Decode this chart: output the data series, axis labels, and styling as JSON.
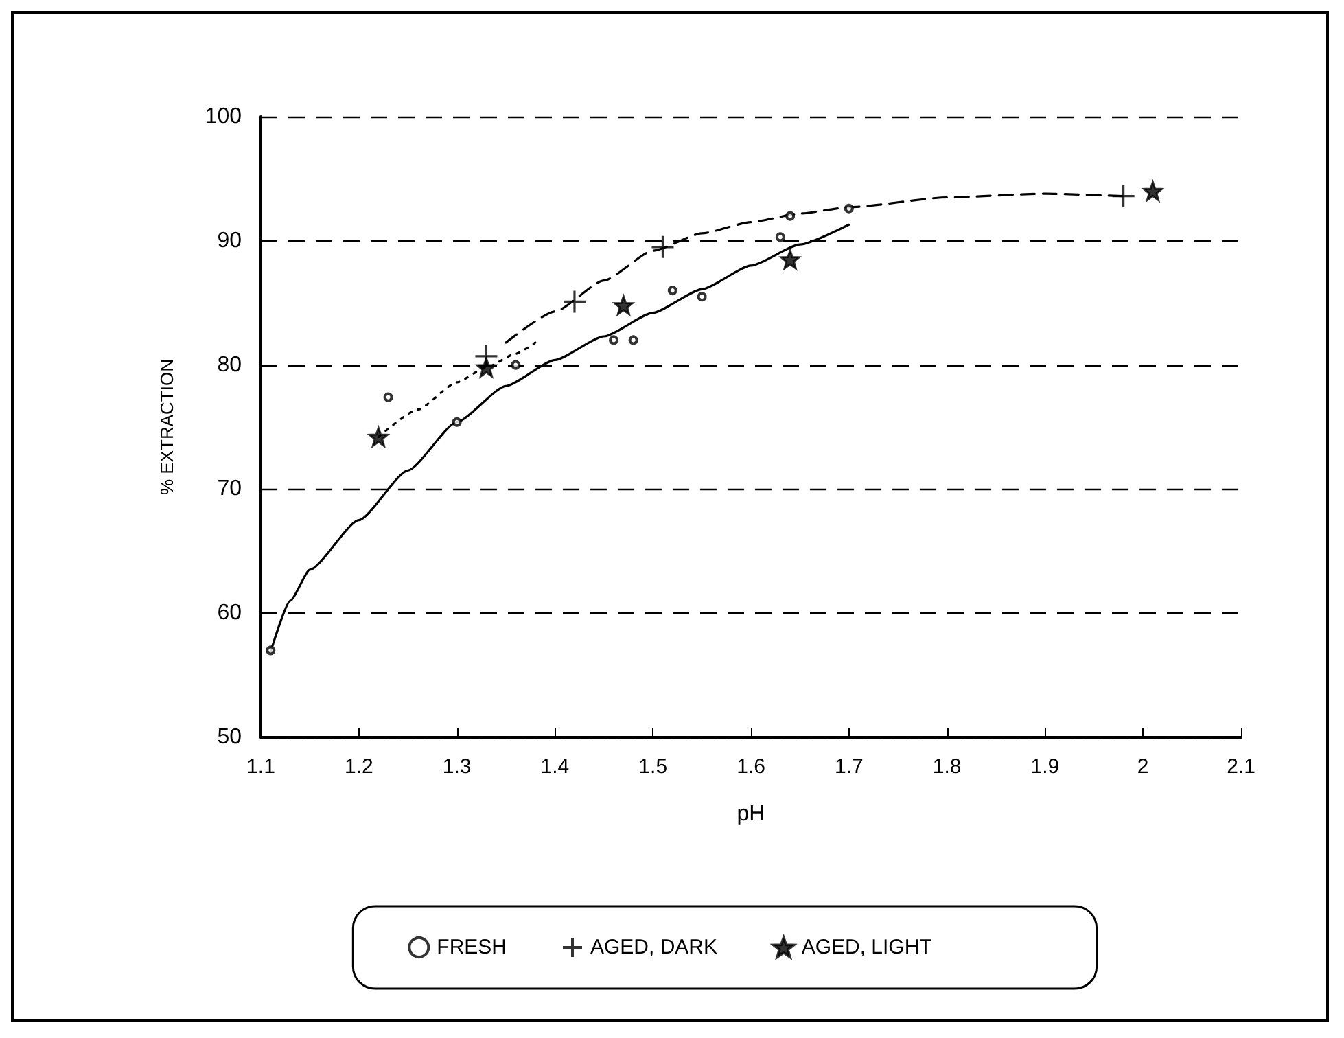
{
  "chart_data": {
    "type": "scatter",
    "xlabel": "pH",
    "ylabel": "% EXTRACTION",
    "xlim": [
      1.1,
      2.1
    ],
    "xticks": [
      1.1,
      1.2,
      1.3,
      1.4,
      1.5,
      1.6,
      1.7,
      1.8,
      1.9,
      2,
      2.1
    ],
    "ylim": [
      50,
      100
    ],
    "yticks": [
      50,
      60,
      70,
      80,
      90,
      100
    ],
    "grid": "y",
    "legend": "bottom",
    "series": [
      {
        "name": "FRESH",
        "marker": "circle",
        "color": "#000000",
        "x": [
          1.11,
          1.23,
          1.3,
          1.36,
          1.46,
          1.48,
          1.52,
          1.55,
          1.63,
          1.64,
          1.7
        ],
        "values": [
          57,
          77.4,
          75.4,
          80,
          82,
          82,
          86,
          85.5,
          90.3,
          92,
          92.6
        ]
      },
      {
        "name": "AGED, DARK",
        "marker": "cross",
        "color": "#000000",
        "x": [
          1.33,
          1.42,
          1.51,
          1.98
        ],
        "values": [
          80.7,
          85.1,
          89.5,
          93.6
        ]
      },
      {
        "name": "AGED, LIGHT",
        "marker": "star",
        "color": "#000000",
        "x": [
          1.22,
          1.33,
          1.47,
          1.64,
          2.01
        ],
        "values": [
          74.2,
          79.8,
          84.8,
          88.5,
          94
        ]
      },
      {
        "type": "line",
        "line_style": "solid",
        "color": "#000000",
        "x": [
          1.11,
          1.13,
          1.15,
          1.2,
          1.25,
          1.3,
          1.35,
          1.4,
          1.45,
          1.5,
          1.55,
          1.6,
          1.65,
          1.7
        ],
        "values": [
          56.9,
          61,
          63.5,
          67.5,
          71.5,
          75.4,
          78.3,
          80.4,
          82.3,
          84.2,
          86.1,
          88,
          89.7,
          91.3
        ]
      },
      {
        "type": "line",
        "line_style": "dashed",
        "color": "#000000",
        "x": [
          1.35,
          1.4,
          1.45,
          1.5,
          1.55,
          1.6,
          1.65,
          1.7,
          1.8,
          1.9,
          1.98
        ],
        "values": [
          81.8,
          84.3,
          86.8,
          89.2,
          90.6,
          91.5,
          92.2,
          92.7,
          93.5,
          93.8,
          93.6
        ]
      },
      {
        "type": "line",
        "line_style": "dotted",
        "color": "#000000",
        "x": [
          1.22,
          1.26,
          1.3,
          1.33,
          1.36,
          1.38
        ],
        "values": [
          74.2,
          76.4,
          78.6,
          79.8,
          80.9,
          81.8
        ]
      }
    ]
  }
}
